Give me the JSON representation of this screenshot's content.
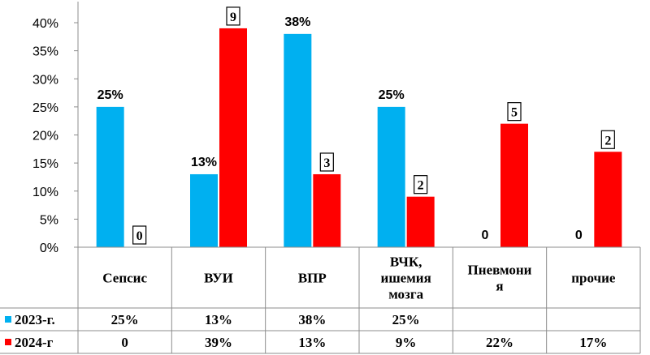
{
  "chart_data": {
    "type": "bar",
    "categories": [
      "Сепсис",
      "ВУИ",
      "ВПР",
      "ВЧК, ишемия мозга",
      "Пневмония",
      "прочие"
    ],
    "category_lines": [
      [
        "Сепсис"
      ],
      [
        "ВУИ"
      ],
      [
        "ВПР"
      ],
      [
        "ВЧК,",
        "ишемия",
        "мозга"
      ],
      [
        "Пневмони",
        "я"
      ],
      [
        "прочие"
      ]
    ],
    "ylim": [
      0,
      40
    ],
    "yticks": [
      "0%",
      "5%",
      "10%",
      "15%",
      "20%",
      "25%",
      "30%",
      "35%",
      "40%"
    ],
    "grid": false,
    "series": [
      {
        "name": "2023-г.",
        "color": "#00b0f0",
        "values": [
          25,
          13,
          38,
          25,
          0,
          0
        ],
        "labels": [
          "25%",
          "13%",
          "38%",
          "25%",
          "0",
          "0"
        ],
        "labels_boxed": false,
        "table": [
          "25%",
          "13%",
          "38%",
          "25%",
          "",
          ""
        ]
      },
      {
        "name": "2024-г",
        "color": "#ff0000",
        "values": [
          0,
          39,
          13,
          9,
          22,
          17
        ],
        "labels": [
          "0",
          "9",
          "3",
          "2",
          "5",
          "2"
        ],
        "labels_boxed": true,
        "table": [
          "0",
          "39%",
          "13%",
          "9%",
          "22%",
          "17%"
        ]
      }
    ]
  }
}
